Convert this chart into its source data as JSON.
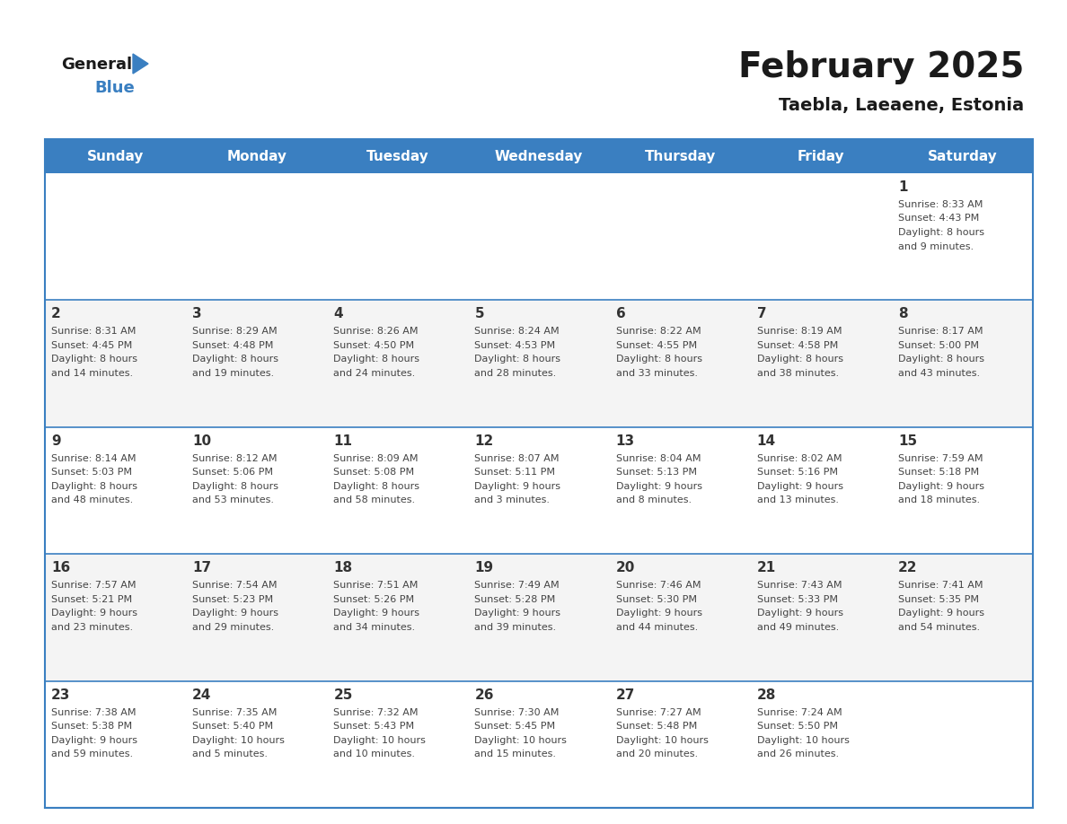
{
  "title": "February 2025",
  "subtitle": "Taebla, Laeaene, Estonia",
  "header_color": "#3A7FC1",
  "header_text_color": "#FFFFFF",
  "day_names": [
    "Sunday",
    "Monday",
    "Tuesday",
    "Wednesday",
    "Thursday",
    "Friday",
    "Saturday"
  ],
  "background_color": "#FFFFFF",
  "cell_bg": "#FFFFFF",
  "row_bg_alt": "#EFEFEF",
  "separator_color": "#3A7FC1",
  "calendar": [
    [
      null,
      null,
      null,
      null,
      null,
      null,
      {
        "day": 1,
        "sunrise": "8:33 AM",
        "sunset": "4:43 PM",
        "daylight": "8 hours and 9 minutes"
      }
    ],
    [
      {
        "day": 2,
        "sunrise": "8:31 AM",
        "sunset": "4:45 PM",
        "daylight": "8 hours and 14 minutes"
      },
      {
        "day": 3,
        "sunrise": "8:29 AM",
        "sunset": "4:48 PM",
        "daylight": "8 hours and 19 minutes"
      },
      {
        "day": 4,
        "sunrise": "8:26 AM",
        "sunset": "4:50 PM",
        "daylight": "8 hours and 24 minutes"
      },
      {
        "day": 5,
        "sunrise": "8:24 AM",
        "sunset": "4:53 PM",
        "daylight": "8 hours and 28 minutes"
      },
      {
        "day": 6,
        "sunrise": "8:22 AM",
        "sunset": "4:55 PM",
        "daylight": "8 hours and 33 minutes"
      },
      {
        "day": 7,
        "sunrise": "8:19 AM",
        "sunset": "4:58 PM",
        "daylight": "8 hours and 38 minutes"
      },
      {
        "day": 8,
        "sunrise": "8:17 AM",
        "sunset": "5:00 PM",
        "daylight": "8 hours and 43 minutes"
      }
    ],
    [
      {
        "day": 9,
        "sunrise": "8:14 AM",
        "sunset": "5:03 PM",
        "daylight": "8 hours and 48 minutes"
      },
      {
        "day": 10,
        "sunrise": "8:12 AM",
        "sunset": "5:06 PM",
        "daylight": "8 hours and 53 minutes"
      },
      {
        "day": 11,
        "sunrise": "8:09 AM",
        "sunset": "5:08 PM",
        "daylight": "8 hours and 58 minutes"
      },
      {
        "day": 12,
        "sunrise": "8:07 AM",
        "sunset": "5:11 PM",
        "daylight": "9 hours and 3 minutes"
      },
      {
        "day": 13,
        "sunrise": "8:04 AM",
        "sunset": "5:13 PM",
        "daylight": "9 hours and 8 minutes"
      },
      {
        "day": 14,
        "sunrise": "8:02 AM",
        "sunset": "5:16 PM",
        "daylight": "9 hours and 13 minutes"
      },
      {
        "day": 15,
        "sunrise": "7:59 AM",
        "sunset": "5:18 PM",
        "daylight": "9 hours and 18 minutes"
      }
    ],
    [
      {
        "day": 16,
        "sunrise": "7:57 AM",
        "sunset": "5:21 PM",
        "daylight": "9 hours and 23 minutes"
      },
      {
        "day": 17,
        "sunrise": "7:54 AM",
        "sunset": "5:23 PM",
        "daylight": "9 hours and 29 minutes"
      },
      {
        "day": 18,
        "sunrise": "7:51 AM",
        "sunset": "5:26 PM",
        "daylight": "9 hours and 34 minutes"
      },
      {
        "day": 19,
        "sunrise": "7:49 AM",
        "sunset": "5:28 PM",
        "daylight": "9 hours and 39 minutes"
      },
      {
        "day": 20,
        "sunrise": "7:46 AM",
        "sunset": "5:30 PM",
        "daylight": "9 hours and 44 minutes"
      },
      {
        "day": 21,
        "sunrise": "7:43 AM",
        "sunset": "5:33 PM",
        "daylight": "9 hours and 49 minutes"
      },
      {
        "day": 22,
        "sunrise": "7:41 AM",
        "sunset": "5:35 PM",
        "daylight": "9 hours and 54 minutes"
      }
    ],
    [
      {
        "day": 23,
        "sunrise": "7:38 AM",
        "sunset": "5:38 PM",
        "daylight": "9 hours and 59 minutes"
      },
      {
        "day": 24,
        "sunrise": "7:35 AM",
        "sunset": "5:40 PM",
        "daylight": "10 hours and 5 minutes"
      },
      {
        "day": 25,
        "sunrise": "7:32 AM",
        "sunset": "5:43 PM",
        "daylight": "10 hours and 10 minutes"
      },
      {
        "day": 26,
        "sunrise": "7:30 AM",
        "sunset": "5:45 PM",
        "daylight": "10 hours and 15 minutes"
      },
      {
        "day": 27,
        "sunrise": "7:27 AM",
        "sunset": "5:48 PM",
        "daylight": "10 hours and 20 minutes"
      },
      {
        "day": 28,
        "sunrise": "7:24 AM",
        "sunset": "5:50 PM",
        "daylight": "10 hours and 26 minutes"
      },
      null
    ]
  ],
  "title_fontsize": 28,
  "subtitle_fontsize": 14,
  "header_fontsize": 11,
  "day_num_fontsize": 11,
  "info_fontsize": 8
}
